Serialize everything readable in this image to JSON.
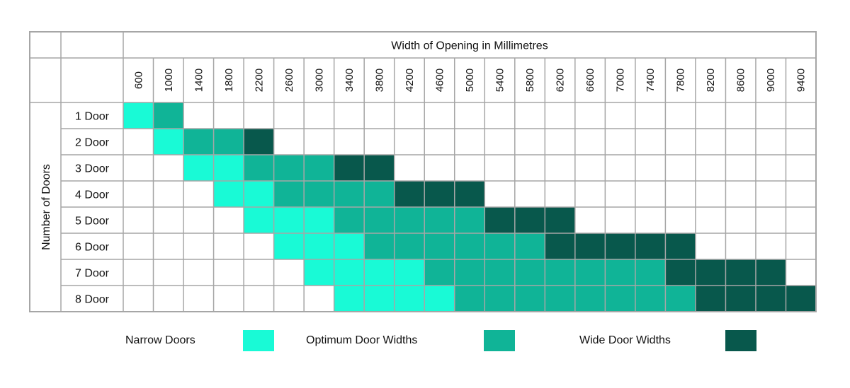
{
  "chart_data": {
    "type": "heatmap",
    "title": "",
    "xlabel": "Width of Opening in Millimetres",
    "ylabel": "Number of Doors",
    "x": [
      "600",
      "1000",
      "1400",
      "1800",
      "2200",
      "2600",
      "3000",
      "3400",
      "3800",
      "4200",
      "4600",
      "5000",
      "5400",
      "5800",
      "6200",
      "6600",
      "7000",
      "7400",
      "7800",
      "8200",
      "8600",
      "9000",
      "9400"
    ],
    "y": [
      "1 Door",
      "2 Door",
      "3 Door",
      "4 Door",
      "5 Door",
      "6 Door",
      "7 Door",
      "8 Door"
    ],
    "category_colors": {
      "narrow": "#19FAD6",
      "optimum": "#10B497",
      "wide": "#08584C",
      "empty": "#FFFFFF"
    },
    "cells": [
      [
        "narrow",
        "optimum",
        "",
        "",
        "",
        "",
        "",
        "",
        "",
        "",
        "",
        "",
        "",
        "",
        "",
        "",
        "",
        "",
        "",
        "",
        "",
        "",
        ""
      ],
      [
        "",
        "narrow",
        "optimum",
        "optimum",
        "wide",
        "",
        "",
        "",
        "",
        "",
        "",
        "",
        "",
        "",
        "",
        "",
        "",
        "",
        "",
        "",
        "",
        "",
        ""
      ],
      [
        "",
        "",
        "narrow",
        "narrow",
        "optimum",
        "optimum",
        "optimum",
        "wide",
        "wide",
        "",
        "",
        "",
        "",
        "",
        "",
        "",
        "",
        "",
        "",
        "",
        "",
        "",
        ""
      ],
      [
        "",
        "",
        "",
        "narrow",
        "narrow",
        "optimum",
        "optimum",
        "optimum",
        "optimum",
        "wide",
        "wide",
        "wide",
        "",
        "",
        "",
        "",
        "",
        "",
        "",
        "",
        "",
        "",
        ""
      ],
      [
        "",
        "",
        "",
        "",
        "narrow",
        "narrow",
        "narrow",
        "optimum",
        "optimum",
        "optimum",
        "optimum",
        "optimum",
        "wide",
        "wide",
        "wide",
        "",
        "",
        "",
        "",
        "",
        "",
        "",
        ""
      ],
      [
        "",
        "",
        "",
        "",
        "",
        "narrow",
        "narrow",
        "narrow",
        "optimum",
        "optimum",
        "optimum",
        "optimum",
        "optimum",
        "optimum",
        "wide",
        "wide",
        "wide",
        "wide",
        "wide",
        "",
        "",
        "",
        ""
      ],
      [
        "",
        "",
        "",
        "",
        "",
        "",
        "narrow",
        "narrow",
        "narrow",
        "narrow",
        "optimum",
        "optimum",
        "optimum",
        "optimum",
        "optimum",
        "optimum",
        "optimum",
        "optimum",
        "wide",
        "wide",
        "wide",
        "wide",
        ""
      ],
      [
        "",
        "",
        "",
        "",
        "",
        "",
        "",
        "narrow",
        "narrow",
        "narrow",
        "narrow",
        "optimum",
        "optimum",
        "optimum",
        "optimum",
        "optimum",
        "optimum",
        "optimum",
        "optimum",
        "wide",
        "wide",
        "wide",
        "wide"
      ]
    ],
    "legend_position": "bottom",
    "legend": [
      {
        "key": "narrow",
        "label": "Narrow Doors"
      },
      {
        "key": "optimum",
        "label": "Optimum Door Widths"
      },
      {
        "key": "wide",
        "label": "Wide Door Widths"
      }
    ]
  }
}
